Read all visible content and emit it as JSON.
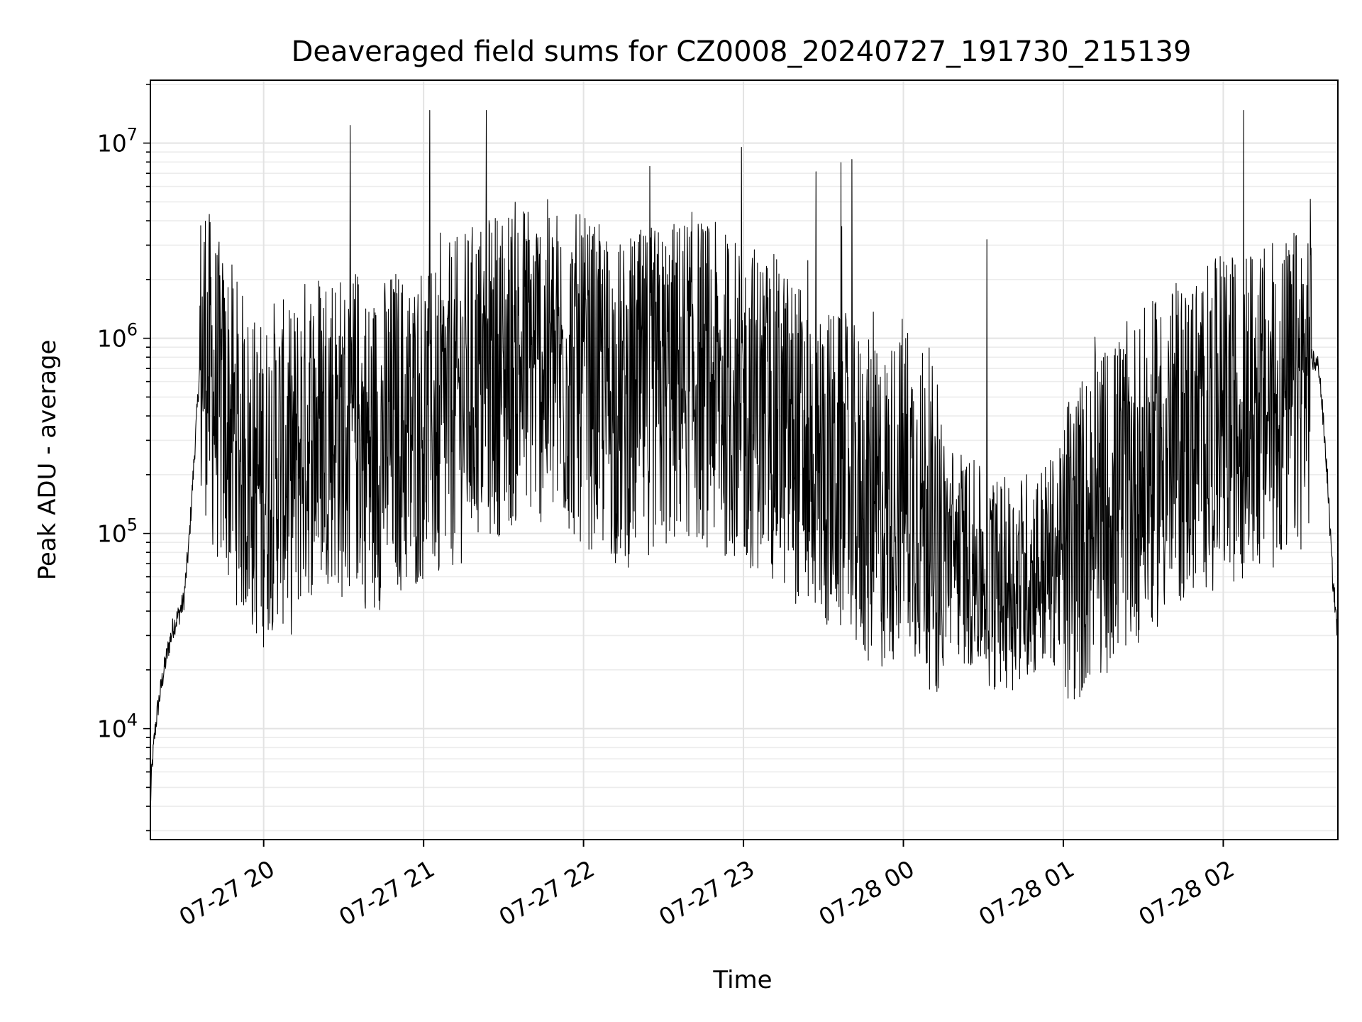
{
  "chart_data": {
    "type": "line",
    "title": "Deaveraged field sums for CZ0008_20240727_191730_215139",
    "xlabel": "Time",
    "ylabel": "Peak ADU - average",
    "y_scale": "log",
    "ylim": [
      2700,
      21000000
    ],
    "xlim": [
      "2024-07-27 19:17:30",
      "2024-07-28 02:43:00"
    ],
    "grid": true,
    "grid_minor": true,
    "line_color": "#000000",
    "x_ticks": [
      {
        "value": "2024-07-27 20:00",
        "label": "07-27 20"
      },
      {
        "value": "2024-07-27 21:00",
        "label": "07-27 21"
      },
      {
        "value": "2024-07-27 22:00",
        "label": "07-27 22"
      },
      {
        "value": "2024-07-27 23:00",
        "label": "07-27 23"
      },
      {
        "value": "2024-07-28 00:00",
        "label": "07-28 00"
      },
      {
        "value": "2024-07-28 01:00",
        "label": "07-28 01"
      },
      {
        "value": "2024-07-28 02:00",
        "label": "07-28 02"
      }
    ],
    "y_ticks": [
      {
        "value": 10000,
        "base": "10",
        "exp": "4"
      },
      {
        "value": 100000,
        "base": "10",
        "exp": "5"
      },
      {
        "value": 1000000,
        "base": "10",
        "exp": "6"
      },
      {
        "value": 10000000,
        "base": "10",
        "exp": "7"
      }
    ],
    "series": [
      {
        "x": [
          "2024-07-27 19:17:30",
          "2024-07-27 19:18",
          "2024-07-27 19:19",
          "2024-07-27 19:20",
          "2024-07-27 19:22",
          "2024-07-27 19:24",
          "2024-07-27 19:26",
          "2024-07-27 19:28",
          "2024-07-27 19:30",
          "2024-07-27 19:32",
          "2024-07-27 19:34",
          "2024-07-27 19:36",
          "2024-07-27 19:38",
          "2024-07-27 19:40",
          "2024-07-27 19:42",
          "2024-07-27 19:45",
          "2024-07-27 19:48",
          "2024-07-27 19:52",
          "2024-07-27 19:56",
          "2024-07-27 20:00",
          "2024-07-27 20:05",
          "2024-07-27 20:10",
          "2024-07-27 20:15",
          "2024-07-27 20:20",
          "2024-07-27 20:25",
          "2024-07-27 20:30",
          "2024-07-27 20:35",
          "2024-07-27 20:40",
          "2024-07-27 20:45",
          "2024-07-27 20:50",
          "2024-07-27 20:55",
          "2024-07-27 21:00",
          "2024-07-27 21:05",
          "2024-07-27 21:10",
          "2024-07-27 21:15",
          "2024-07-27 21:20",
          "2024-07-27 21:25",
          "2024-07-27 21:30",
          "2024-07-27 21:35",
          "2024-07-27 21:40",
          "2024-07-27 21:45",
          "2024-07-27 21:50",
          "2024-07-27 21:55",
          "2024-07-27 22:00",
          "2024-07-27 22:05",
          "2024-07-27 22:10",
          "2024-07-27 22:15",
          "2024-07-27 22:20",
          "2024-07-27 22:25",
          "2024-07-27 22:30",
          "2024-07-27 22:35",
          "2024-07-27 22:40",
          "2024-07-27 22:45",
          "2024-07-27 22:50",
          "2024-07-27 22:55",
          "2024-07-27 23:00",
          "2024-07-27 23:05",
          "2024-07-27 23:10",
          "2024-07-27 23:15",
          "2024-07-27 23:20",
          "2024-07-27 23:25",
          "2024-07-27 23:30",
          "2024-07-27 23:35",
          "2024-07-27 23:40",
          "2024-07-27 23:45",
          "2024-07-27 23:50",
          "2024-07-27 23:55",
          "2024-07-28 00:00",
          "2024-07-28 00:05",
          "2024-07-28 00:10",
          "2024-07-28 00:15",
          "2024-07-28 00:20",
          "2024-07-28 00:25",
          "2024-07-28 00:30",
          "2024-07-28 00:35",
          "2024-07-28 00:40",
          "2024-07-28 00:45",
          "2024-07-28 00:50",
          "2024-07-28 00:55",
          "2024-07-28 01:00",
          "2024-07-28 01:05",
          "2024-07-28 01:10",
          "2024-07-28 01:15",
          "2024-07-28 01:20",
          "2024-07-28 01:25",
          "2024-07-28 01:30",
          "2024-07-28 01:35",
          "2024-07-28 01:40",
          "2024-07-28 01:45",
          "2024-07-28 01:50",
          "2024-07-28 01:55",
          "2024-07-28 02:00",
          "2024-07-28 02:05",
          "2024-07-28 02:10",
          "2024-07-28 02:15",
          "2024-07-28 02:20",
          "2024-07-28 02:25",
          "2024-07-28 02:30",
          "2024-07-28 02:33",
          "2024-07-28 02:36",
          "2024-07-28 02:39",
          "2024-07-28 02:41",
          "2024-07-28 02:43"
        ],
        "y": [
          4000,
          6000,
          9000,
          12000,
          18000,
          25000,
          33000,
          38000,
          45000,
          90000,
          250000,
          700000,
          900000,
          600000,
          500000,
          400000,
          350000,
          250000,
          200000,
          180000,
          250000,
          200000,
          300000,
          350000,
          400000,
          300000,
          350000,
          250000,
          300000,
          350000,
          300000,
          400000,
          350000,
          450000,
          500000,
          600000,
          650000,
          700000,
          750000,
          800000,
          750000,
          700000,
          650000,
          600000,
          550000,
          500000,
          450000,
          500000,
          550000,
          550000,
          600000,
          650000,
          600000,
          550000,
          500000,
          450000,
          450000,
          400000,
          350000,
          300000,
          250000,
          220000,
          200000,
          180000,
          150000,
          130000,
          140000,
          200000,
          150000,
          110000,
          90000,
          80000,
          70000,
          60000,
          55000,
          55000,
          60000,
          65000,
          70000,
          80000,
          90000,
          110000,
          130000,
          150000,
          180000,
          200000,
          230000,
          260000,
          300000,
          330000,
          350000,
          380000,
          400000,
          420000,
          430000,
          450000,
          480000,
          600000,
          800000,
          700000,
          200000,
          60000,
          30000
        ],
        "y_range_note": ""
      }
    ]
  }
}
